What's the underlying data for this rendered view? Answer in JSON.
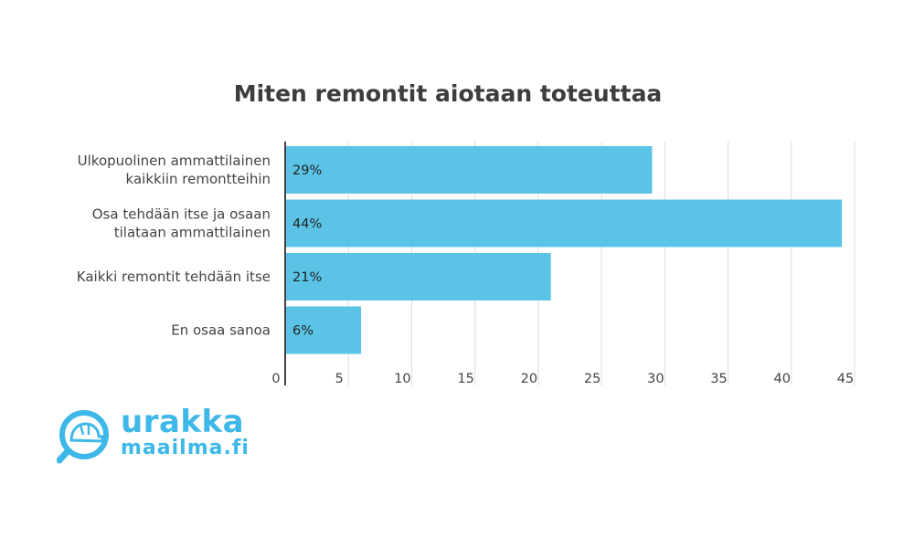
{
  "chart_data": {
    "type": "bar",
    "orientation": "horizontal",
    "title": "Miten remontit aiotaan toteuttaa",
    "categories": [
      [
        "Ulkopuolinen ammattilainen",
        "kaikkiin remontteihin"
      ],
      [
        "Osa tehdään itse ja osaan",
        "tilataan ammattilainen"
      ],
      [
        "Kaikki remontit tehdään itse"
      ],
      [
        "En osaa sanoa"
      ]
    ],
    "values": [
      29,
      44,
      21,
      6
    ],
    "data_labels": [
      "29%",
      "44%",
      "21%",
      "6%"
    ],
    "xlim": [
      0,
      45
    ],
    "xticks": [
      0,
      5,
      10,
      15,
      20,
      25,
      30,
      35,
      40,
      45
    ],
    "grid": true,
    "bar_color": "#5bc4e6"
  },
  "logo": {
    "line1": "urakka",
    "line2": "maailma.fi",
    "color": "#3db8e8"
  }
}
